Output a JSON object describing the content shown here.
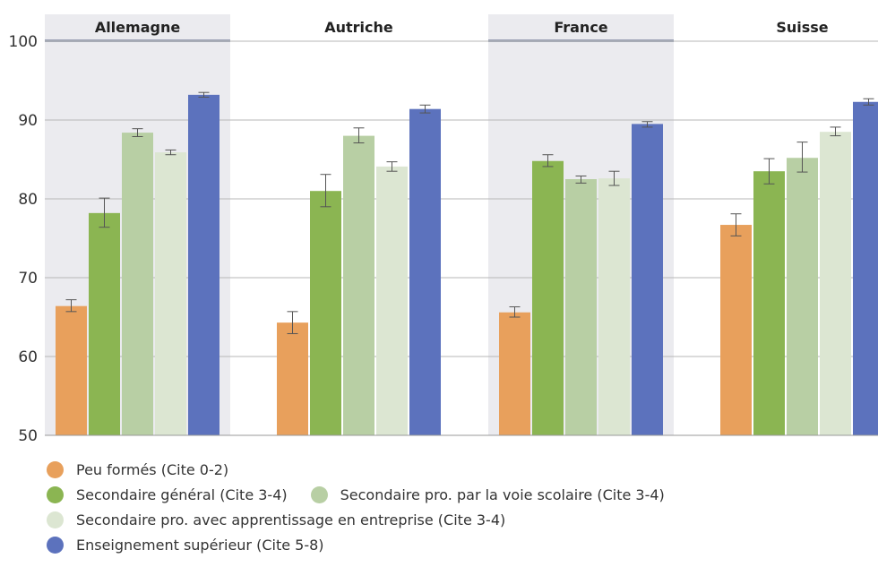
{
  "chart_data": {
    "type": "bar",
    "ylim": [
      50,
      100
    ],
    "yticks": [
      50,
      60,
      70,
      80,
      90,
      100
    ],
    "grid": true,
    "categories": [
      "Allemagne",
      "Autriche",
      "France",
      "Suisse"
    ],
    "shaded_panels": [
      "Allemagne",
      "France"
    ],
    "series": [
      {
        "name": "Peu formés (Cite 0-2)",
        "color": "#E8A05C",
        "values": [
          66.4,
          64.3,
          65.6,
          76.7
        ],
        "err_low": [
          65.7,
          62.9,
          65.0,
          75.3
        ],
        "err_high": [
          67.2,
          65.7,
          66.3,
          78.1
        ]
      },
      {
        "name": "Secondaire général (Cite 3-4)",
        "color": "#8BB552",
        "values": [
          78.2,
          81.0,
          84.8,
          83.5
        ],
        "err_low": [
          76.4,
          79.0,
          84.1,
          81.9
        ],
        "err_high": [
          80.1,
          83.1,
          85.6,
          85.1
        ]
      },
      {
        "name": "Secondaire pro. par la voie scolaire (Cite 3-4)",
        "color": "#B8CFA4",
        "values": [
          88.4,
          88.0,
          82.5,
          85.2
        ],
        "err_low": [
          87.9,
          87.1,
          82.0,
          83.4
        ],
        "err_high": [
          88.9,
          89.0,
          82.9,
          87.2
        ]
      },
      {
        "name": "Secondaire pro. avec apprentissage en entreprise (Cite 3-4)",
        "color": "#DCE6D2",
        "values": [
          85.9,
          84.1,
          82.6,
          88.5
        ],
        "err_low": [
          85.6,
          83.5,
          81.7,
          88.0
        ],
        "err_high": [
          86.2,
          84.7,
          83.5,
          89.1
        ]
      },
      {
        "name": "Enseignement supérieur (Cite 5-8)",
        "color": "#5C72BD",
        "values": [
          93.2,
          91.4,
          89.5,
          92.3
        ],
        "err_low": [
          92.9,
          90.9,
          89.1,
          91.9
        ],
        "err_high": [
          93.5,
          91.9,
          89.8,
          92.7
        ]
      }
    ]
  },
  "legend_rows": [
    [
      0
    ],
    [
      1,
      2
    ],
    [
      3
    ],
    [
      4
    ]
  ]
}
